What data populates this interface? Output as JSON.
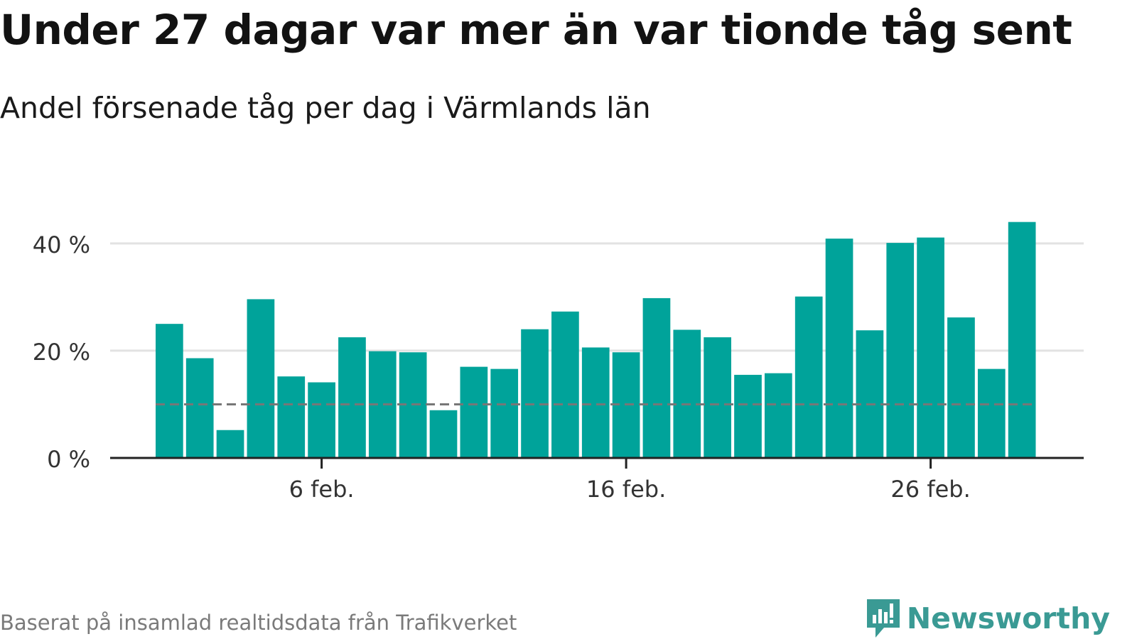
{
  "title": "Under 27 dagar var mer än var tionde tåg sent",
  "subtitle": "Andel försenade tåg per dag i Värmlands län",
  "source": "Baserat på insamlad realtidsdata från Trafikverket",
  "brand": "Newsworthy",
  "colors": {
    "bar": "#00a39a",
    "reference_line": "#777777",
    "grid": "#e2e2e2",
    "axis": "#222222",
    "brand": "#3a9a94"
  },
  "chart_data": {
    "type": "bar",
    "x_unit": "day",
    "categories": [
      "1 feb.",
      "2 feb.",
      "3 feb.",
      "4 feb.",
      "5 feb.",
      "6 feb.",
      "7 feb.",
      "8 feb.",
      "9 feb.",
      "10 feb.",
      "11 feb.",
      "12 feb.",
      "13 feb.",
      "14 feb.",
      "15 feb.",
      "16 feb.",
      "17 feb.",
      "18 feb.",
      "19 feb.",
      "20 feb.",
      "21 feb.",
      "22 feb.",
      "23 feb.",
      "24 feb.",
      "25 feb.",
      "26 feb.",
      "27 feb.",
      "28 feb.",
      "29 feb."
    ],
    "values": [
      25.0,
      18.6,
      5.2,
      29.6,
      15.2,
      14.1,
      22.5,
      19.9,
      19.7,
      8.9,
      17.0,
      16.6,
      24.0,
      27.3,
      20.6,
      19.7,
      29.8,
      23.9,
      22.5,
      15.5,
      15.8,
      30.1,
      40.9,
      23.8,
      40.1,
      41.1,
      26.2,
      16.6,
      44.0
    ],
    "x_ticks": [
      "6 feb.",
      "16 feb.",
      "26 feb."
    ],
    "y_ticks": [
      0,
      20,
      40
    ],
    "y_tick_labels": [
      "0 %",
      "20 %",
      "40 %"
    ],
    "ylim": [
      0,
      47
    ],
    "reference_line": 10,
    "grid": true,
    "legend": "none"
  }
}
